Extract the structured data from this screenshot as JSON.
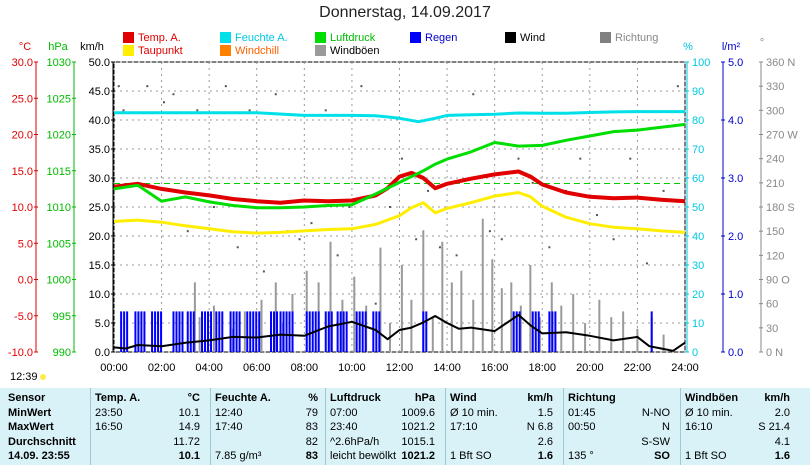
{
  "title": "Donnerstag, 14.09.2017",
  "legend": [
    {
      "label": "Temp. A.",
      "color": "#e00000"
    },
    {
      "label": "Feuchte A.",
      "color": "#00e0e8"
    },
    {
      "label": "Luftdruck",
      "color": "#00dd00"
    },
    {
      "label": "Regen",
      "color": "#0000ff"
    },
    {
      "label": "Wind",
      "color": "#000000"
    },
    {
      "label": "Richtung",
      "color": "#808080"
    },
    {
      "label": "Taupunkt",
      "color": "#ffee00"
    },
    {
      "label": "Windchill",
      "color": "#ff8000"
    },
    {
      "label": "Windböen",
      "color": "#9a9a9a"
    }
  ],
  "axis_units": {
    "temp": "°C",
    "hpa": "hPa",
    "kmh": "km/h",
    "pct": "%",
    "rain": "l/m²",
    "dir": "°"
  },
  "current_time": "12:39",
  "chart_data": {
    "type": "line",
    "x_ticks": [
      "00:00",
      "02:00",
      "04:00",
      "06:00",
      "08:00",
      "10:00",
      "12:00",
      "14:00",
      "16:00",
      "18:00",
      "20:00",
      "22:00",
      "24:00"
    ],
    "y_axes": {
      "temp_c": {
        "ticks": [
          "30.0",
          "25.0",
          "20.0",
          "15.0",
          "10.0",
          "5.0",
          "0.0",
          "-5.0",
          "-10.0"
        ],
        "range": [
          -10,
          30
        ]
      },
      "pressure_hpa": {
        "ticks": [
          "1030",
          "1025",
          "1020",
          "1015",
          "1010",
          "1005",
          "1000",
          "995",
          "990"
        ],
        "range": [
          990,
          1030
        ]
      },
      "wind_kmh": {
        "ticks": [
          "50.0",
          "45.0",
          "40.0",
          "35.0",
          "30.0",
          "25.0",
          "20.0",
          "15.0",
          "10.0",
          "5.0",
          "0.0"
        ],
        "range": [
          0,
          50
        ]
      },
      "humidity_pct": {
        "ticks": [
          "100",
          "90",
          "80",
          "70",
          "60",
          "50",
          "40",
          "30",
          "20",
          "10",
          "0"
        ],
        "range": [
          0,
          100
        ]
      },
      "rain_lm2": {
        "ticks": [
          "5.0",
          "4.0",
          "3.0",
          "2.0",
          "1.0",
          "0.0"
        ],
        "range": [
          0,
          5
        ]
      },
      "direction_deg": {
        "ticks": [
          "360 N",
          "330",
          "300",
          "270 W",
          "240",
          "210",
          "180 S",
          "150",
          "120",
          "90 O",
          "60",
          "30",
          "0 N"
        ],
        "range": [
          0,
          360
        ]
      }
    },
    "series": [
      {
        "name": "Temp. A.",
        "axis": "temp_c",
        "x": [
          0,
          1,
          2,
          3,
          4,
          5,
          6,
          7,
          8,
          9,
          10,
          11,
          11.5,
          12,
          12.5,
          13,
          13.5,
          14,
          15,
          16,
          17,
          17.5,
          18,
          19,
          20,
          21,
          22,
          23,
          24
        ],
        "values": [
          12.8,
          13.2,
          12.5,
          12.0,
          11.6,
          11.1,
          10.8,
          10.6,
          10.9,
          10.8,
          10.9,
          11.6,
          12.6,
          14.2,
          14.7,
          14.0,
          12.6,
          13.2,
          13.9,
          14.5,
          14.9,
          14.2,
          13.1,
          12.0,
          11.4,
          11.2,
          11.3,
          11.0,
          10.8
        ]
      },
      {
        "name": "Taupunkt",
        "axis": "temp_c",
        "x": [
          0,
          1,
          2,
          3,
          4,
          5,
          6,
          7,
          8,
          9,
          10,
          11,
          12,
          12.5,
          13,
          13.5,
          14,
          15,
          16,
          17,
          17.5,
          18,
          19,
          20,
          21,
          22,
          23,
          24
        ],
        "values": [
          8.0,
          8.2,
          7.9,
          7.4,
          7.0,
          6.6,
          6.4,
          6.5,
          6.7,
          6.9,
          7.0,
          7.6,
          8.8,
          9.9,
          10.6,
          9.2,
          9.8,
          10.6,
          11.5,
          12.0,
          11.4,
          10.1,
          8.6,
          7.7,
          7.2,
          7.0,
          6.7,
          6.5
        ]
      },
      {
        "name": "Feuchte A.",
        "axis": "humidity_pct",
        "x": [
          0,
          4,
          6,
          8,
          10,
          11,
          12,
          12.8,
          13.5,
          14,
          15,
          16,
          17,
          18,
          19,
          20,
          21,
          22,
          23,
          24
        ],
        "values": [
          82.5,
          82.5,
          82.5,
          81.6,
          81.6,
          81.5,
          80.6,
          79.4,
          80.6,
          81.6,
          81.8,
          82.0,
          82.4,
          82.3,
          82.3,
          82.6,
          82.8,
          82.9,
          82.9,
          82.9
        ]
      },
      {
        "name": "Luftdruck",
        "axis": "pressure_hpa",
        "x": [
          0,
          1,
          2,
          3,
          4,
          5,
          6,
          7,
          8,
          9,
          10,
          11,
          12,
          13,
          13.5,
          14,
          15,
          16,
          17,
          18,
          19,
          20,
          21,
          22,
          23,
          24
        ],
        "values": [
          1012.5,
          1013.0,
          1010.8,
          1011.4,
          1010.7,
          1010.2,
          1009.9,
          1009.9,
          1010.0,
          1010.2,
          1010.3,
          1011.8,
          1013.4,
          1015.0,
          1015.9,
          1016.6,
          1017.6,
          1018.9,
          1018.4,
          1018.5,
          1019.2,
          1019.8,
          1020.4,
          1020.6,
          1021.0,
          1021.4
        ]
      },
      {
        "name": "Wind",
        "axis": "wind_kmh",
        "x": [
          0,
          0.5,
          1,
          2,
          3,
          4,
          5,
          6,
          7,
          8,
          8.5,
          9,
          10,
          11,
          11.5,
          12,
          12.5,
          13,
          13.5,
          14,
          14.5,
          15,
          16,
          16.5,
          17,
          17.5,
          18,
          19,
          20,
          21,
          22,
          22.5,
          23,
          23.5,
          24
        ],
        "values": [
          0.8,
          0.6,
          1.2,
          1.0,
          1.6,
          2.0,
          2.6,
          2.5,
          3.0,
          2.8,
          3.6,
          4.4,
          5.2,
          3.8,
          2.2,
          3.8,
          4.2,
          5.1,
          6.2,
          5.0,
          4.0,
          4.2,
          3.6,
          5.0,
          6.4,
          4.6,
          3.2,
          3.4,
          2.8,
          2.0,
          2.6,
          1.0,
          0.6,
          0.2,
          1.6
        ]
      }
    ],
    "gust_bars": {
      "x": [
        3.4,
        3.6,
        4.2,
        5.0,
        5.5,
        6.2,
        6.8,
        7.1,
        7.5,
        8.1,
        8.6,
        9.1,
        9.6,
        10.1,
        10.6,
        11.2,
        11.6,
        12.1,
        12.5,
        13.0,
        13.4,
        13.8,
        14.2,
        14.6,
        15.1,
        15.5,
        15.9,
        16.3,
        16.7,
        17.1,
        17.5,
        17.9,
        18.4,
        18.8,
        19.3,
        19.8,
        20.4,
        20.9,
        21.4,
        22.0,
        22.6,
        23.1
      ],
      "values": [
        12,
        6,
        8,
        4,
        7,
        9,
        12,
        5,
        10,
        14,
        12,
        19,
        9,
        13,
        8,
        18,
        5,
        15,
        9,
        21,
        6,
        19,
        12,
        14,
        9,
        23,
        16,
        11,
        12,
        8,
        15,
        6,
        12,
        8,
        10,
        5,
        9,
        6,
        7,
        4,
        6,
        3
      ]
    },
    "rain_spans": [
      [
        0.3,
        0.6
      ],
      [
        0.9,
        1.3
      ],
      [
        1.6,
        2.1
      ],
      [
        2.5,
        2.9
      ],
      [
        3.1,
        3.4
      ],
      [
        3.7,
        4.1
      ],
      [
        4.3,
        4.6
      ],
      [
        4.9,
        5.3
      ],
      [
        5.6,
        6.2
      ],
      [
        6.6,
        6.9
      ],
      [
        7.0,
        7.6
      ],
      [
        8.1,
        8.7
      ],
      [
        8.9,
        9.2
      ],
      [
        9.4,
        9.8
      ],
      [
        10.2,
        10.6
      ],
      [
        10.9,
        11.2
      ],
      [
        13.0,
        13.2
      ],
      [
        16.8,
        17.1
      ],
      [
        17.6,
        17.9
      ],
      [
        18.3,
        18.6
      ],
      [
        22.6,
        22.7
      ]
    ],
    "direction_points": {
      "x": [
        0.2,
        0.4,
        1.4,
        2.1,
        2.5,
        3.1,
        3.5,
        4.2,
        4.7,
        5.2,
        5.7,
        6.3,
        6.8,
        7.3,
        7.8,
        8.3,
        8.9,
        9.4,
        9.9,
        10.4,
        11.0,
        11.6,
        12.1,
        12.7,
        13.2,
        13.7,
        14.4,
        15.1,
        15.8,
        16.3,
        17.0,
        17.6,
        18.3,
        19.0,
        19.6,
        20.3,
        21.0,
        21.7,
        22.4,
        23.1,
        23.7
      ],
      "values": [
        330,
        300,
        330,
        310,
        320,
        150,
        300,
        180,
        330,
        130,
        300,
        100,
        320,
        150,
        140,
        160,
        300,
        120,
        180,
        330,
        60,
        180,
        240,
        140,
        200,
        130,
        120,
        320,
        150,
        140,
        240,
        210,
        130,
        200,
        240,
        170,
        140,
        240,
        110,
        200,
        330
      ]
    },
    "reference_line": {
      "axis": "pressure_hpa",
      "value": 1013.25
    }
  },
  "table": {
    "headers": [
      "Sensor",
      "Temp. A.",
      "°C",
      "Feuchte A.",
      "%",
      "Luftdruck",
      "hPa",
      "Wind",
      "km/h",
      "Richtung",
      "",
      "Windböen",
      "km/h"
    ],
    "rows": [
      {
        "label": "MinWert",
        "c": [
          "23:50",
          "10.1",
          "12:40",
          "79",
          "07:00",
          "1009.6",
          "Ø 10 min.",
          "1.5",
          "01:45",
          "N-NO",
          "Ø 10 min.",
          "2.0"
        ]
      },
      {
        "label": "MaxWert",
        "c": [
          "16:50",
          "14.9",
          "17:40",
          "83",
          "23:40",
          "1021.2",
          "17:10",
          "N 6.8",
          "00:50",
          "N",
          "16:10",
          "S 21.4"
        ]
      },
      {
        "label": "Durchschnitt",
        "c": [
          "",
          "11.72",
          "",
          "82",
          "^2.6hPa/h",
          "1015.1",
          "",
          "2.6",
          "",
          "S-SW",
          "",
          "4.1"
        ]
      },
      {
        "label": "14.09. 23:55",
        "c": [
          "",
          "10.1",
          "7.85 g/m³",
          "83",
          "leicht bewölkt",
          "1021.2",
          "1 Bft SO",
          "1.6",
          "135 °",
          "SO",
          "1 Bft SO",
          "1.6"
        ]
      }
    ]
  }
}
